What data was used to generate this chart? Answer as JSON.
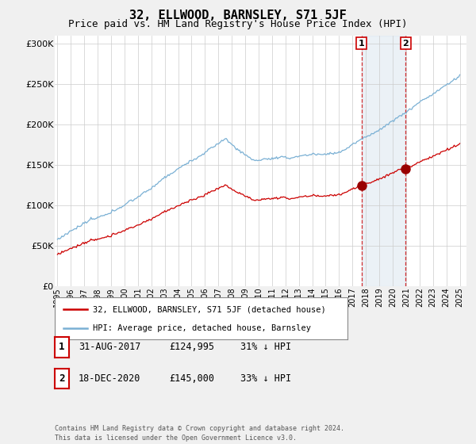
{
  "title": "32, ELLWOOD, BARNSLEY, S71 5JF",
  "subtitle": "Price paid vs. HM Land Registry's House Price Index (HPI)",
  "title_fontsize": 11,
  "subtitle_fontsize": 9,
  "ylabel_ticks": [
    "£0",
    "£50K",
    "£100K",
    "£150K",
    "£200K",
    "£250K",
    "£300K"
  ],
  "ytick_vals": [
    0,
    50000,
    100000,
    150000,
    200000,
    250000,
    300000
  ],
  "ylim": [
    0,
    310000
  ],
  "xlim_start": 1994.8,
  "xlim_end": 2025.5,
  "background_color": "#f0f0f0",
  "plot_bg_color": "#ffffff",
  "grid_color": "#cccccc",
  "hpi_color": "#7ab0d4",
  "price_color": "#cc0000",
  "marker_color": "#990000",
  "dashed_line_color": "#cc0000",
  "span_color": "#c8d8e8",
  "transaction1_x": 2017.667,
  "transaction1_y": 124995,
  "transaction2_x": 2020.97,
  "transaction2_y": 145000,
  "legend_label_price": "32, ELLWOOD, BARNSLEY, S71 5JF (detached house)",
  "legend_label_hpi": "HPI: Average price, detached house, Barnsley",
  "footer": "Contains HM Land Registry data © Crown copyright and database right 2024.\nThis data is licensed under the Open Government Licence v3.0.",
  "table": [
    {
      "num": "1",
      "date": "31-AUG-2017",
      "price": "£124,995",
      "pct": "31% ↓ HPI"
    },
    {
      "num": "2",
      "date": "18-DEC-2020",
      "price": "£145,000",
      "pct": "33% ↓ HPI"
    }
  ]
}
